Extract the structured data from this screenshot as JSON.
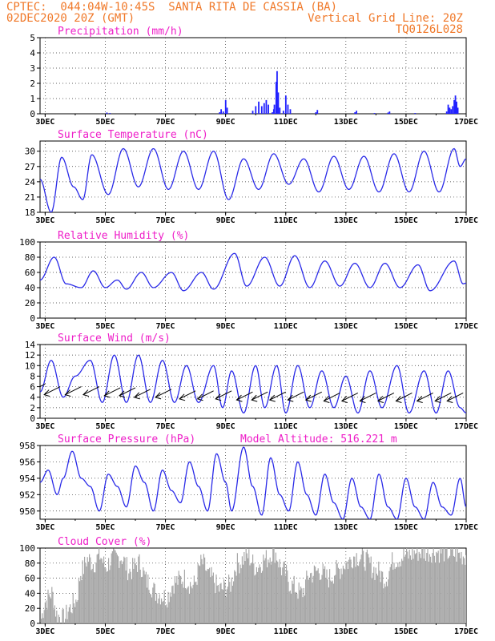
{
  "header": {
    "line1": "CPTEC:  044:04W-10:45S  SANTA RITA DE CASSIA (BA)",
    "line2_left": "02DEC2020 20Z (GMT)",
    "line2_right": "Vertical Grid Line: 20Z",
    "code": "TQ0126L028"
  },
  "colors": {
    "header": "#f07828",
    "title": "#ee1ec8",
    "series": "#2a2ae8",
    "bars": "#2020ff",
    "cloud": "#a8a8a8",
    "wind": "#000000",
    "grid": "#333333"
  },
  "x_axis": {
    "tick_labels": [
      "3DEC",
      "5DEC",
      "7DEC",
      "9DEC",
      "11DEC",
      "13DEC",
      "15DEC",
      "17DEC"
    ],
    "tick_days": [
      3,
      5,
      7,
      9,
      11,
      13,
      15,
      17
    ],
    "range_days": [
      2.83,
      17
    ]
  },
  "chart_data": [
    {
      "type": "bar",
      "title": "Precipitation (mm/h)",
      "ylim": [
        0,
        5
      ],
      "yticks": [
        0,
        1,
        2,
        3,
        4,
        5
      ],
      "grid": true,
      "points": [
        [
          5.05,
          0.08
        ],
        [
          5.15,
          0.05
        ],
        [
          8.8,
          0.1
        ],
        [
          8.85,
          0.3
        ],
        [
          8.92,
          0.15
        ],
        [
          9.0,
          0.9
        ],
        [
          9.05,
          0.4
        ],
        [
          9.9,
          0.2
        ],
        [
          10.0,
          0.5
        ],
        [
          10.1,
          0.8
        ],
        [
          10.2,
          0.5
        ],
        [
          10.28,
          0.7
        ],
        [
          10.35,
          0.9
        ],
        [
          10.42,
          0.6
        ],
        [
          10.55,
          0.1
        ],
        [
          10.6,
          0.3
        ],
        [
          10.62,
          0.6
        ],
        [
          10.68,
          2.1
        ],
        [
          10.71,
          2.8
        ],
        [
          10.75,
          1.4
        ],
        [
          10.8,
          0.4
        ],
        [
          10.92,
          0.2
        ],
        [
          11.0,
          1.2
        ],
        [
          11.07,
          0.6
        ],
        [
          11.15,
          0.3
        ],
        [
          12.0,
          0.1
        ],
        [
          12.05,
          0.25
        ],
        [
          13.3,
          0.1
        ],
        [
          13.35,
          0.2
        ],
        [
          13.95,
          0.05
        ],
        [
          14.4,
          0.08
        ],
        [
          14.45,
          0.15
        ],
        [
          15.3,
          0.05
        ],
        [
          16.35,
          0.15
        ],
        [
          16.4,
          0.6
        ],
        [
          16.45,
          0.4
        ],
        [
          16.5,
          0.3
        ],
        [
          16.55,
          0.5
        ],
        [
          16.6,
          0.9
        ],
        [
          16.64,
          1.2
        ],
        [
          16.68,
          0.8
        ],
        [
          16.72,
          0.4
        ]
      ]
    },
    {
      "type": "line",
      "title": "Surface Temperature (nC)",
      "ylim": [
        18,
        32
      ],
      "yticks": [
        18,
        21,
        24,
        27,
        30
      ],
      "grid": true,
      "series": [
        {
          "mean": 25,
          "amp": 4.8,
          "peak_phase": 0.9,
          "trough_phase": 0.38
        }
      ],
      "keypoints": [
        [
          2.83,
          24.5
        ],
        [
          3.2,
          18.0
        ],
        [
          3.55,
          28.8
        ],
        [
          3.95,
          23.0
        ],
        [
          4.25,
          20.5
        ],
        [
          4.55,
          29.3
        ],
        [
          5.1,
          21.5
        ],
        [
          5.6,
          30.5
        ],
        [
          6.1,
          23.0
        ],
        [
          6.6,
          30.5
        ],
        [
          7.1,
          22.5
        ],
        [
          7.6,
          30.0
        ],
        [
          8.1,
          22.5
        ],
        [
          8.6,
          30.0
        ],
        [
          9.1,
          20.5
        ],
        [
          9.6,
          28.5
        ],
        [
          10.1,
          22.5
        ],
        [
          10.6,
          29.5
        ],
        [
          11.1,
          23.5
        ],
        [
          11.6,
          28.5
        ],
        [
          12.1,
          22.0
        ],
        [
          12.6,
          29.0
        ],
        [
          13.1,
          22.5
        ],
        [
          13.6,
          29.0
        ],
        [
          14.1,
          22.0
        ],
        [
          14.6,
          29.5
        ],
        [
          15.1,
          22.0
        ],
        [
          15.6,
          30.0
        ],
        [
          16.1,
          22.0
        ],
        [
          16.6,
          30.5
        ],
        [
          16.8,
          27.0
        ],
        [
          17.0,
          28.5
        ]
      ]
    },
    {
      "type": "line",
      "title": "Relative Humidity (%)",
      "ylim": [
        0,
        100
      ],
      "yticks": [
        0,
        20,
        40,
        60,
        80,
        100
      ],
      "grid": true,
      "keypoints": [
        [
          2.83,
          50
        ],
        [
          3.3,
          80
        ],
        [
          3.7,
          45
        ],
        [
          4.2,
          40
        ],
        [
          4.6,
          62
        ],
        [
          5.0,
          40
        ],
        [
          5.4,
          50
        ],
        [
          5.7,
          38
        ],
        [
          6.2,
          60
        ],
        [
          6.6,
          40
        ],
        [
          7.2,
          60
        ],
        [
          7.6,
          36
        ],
        [
          8.2,
          60
        ],
        [
          8.6,
          38
        ],
        [
          9.3,
          85
        ],
        [
          9.7,
          42
        ],
        [
          10.3,
          80
        ],
        [
          10.8,
          42
        ],
        [
          11.3,
          82
        ],
        [
          11.8,
          40
        ],
        [
          12.3,
          75
        ],
        [
          12.8,
          42
        ],
        [
          13.3,
          72
        ],
        [
          13.8,
          40
        ],
        [
          14.3,
          72
        ],
        [
          14.8,
          40
        ],
        [
          15.4,
          70
        ],
        [
          15.8,
          36
        ],
        [
          16.6,
          75
        ],
        [
          16.9,
          45
        ],
        [
          17.0,
          46
        ]
      ]
    },
    {
      "type": "line",
      "title": "Surface Wind (m/s)",
      "ylim": [
        0,
        14
      ],
      "yticks": [
        0,
        2,
        4,
        6,
        8,
        10,
        12,
        14
      ],
      "grid": true,
      "keypoints": [
        [
          2.83,
          5
        ],
        [
          3.2,
          11
        ],
        [
          3.6,
          4
        ],
        [
          4.0,
          8
        ],
        [
          4.5,
          11
        ],
        [
          4.9,
          3
        ],
        [
          5.3,
          12
        ],
        [
          5.7,
          3
        ],
        [
          6.1,
          12
        ],
        [
          6.5,
          3
        ],
        [
          6.9,
          11
        ],
        [
          7.3,
          3
        ],
        [
          7.7,
          10
        ],
        [
          8.1,
          3
        ],
        [
          8.6,
          10
        ],
        [
          8.9,
          2
        ],
        [
          9.2,
          9
        ],
        [
          9.6,
          1
        ],
        [
          10.0,
          10
        ],
        [
          10.3,
          2
        ],
        [
          10.7,
          10
        ],
        [
          11.0,
          1
        ],
        [
          11.4,
          10
        ],
        [
          11.8,
          2
        ],
        [
          12.2,
          9
        ],
        [
          12.6,
          2
        ],
        [
          13.0,
          8
        ],
        [
          13.4,
          1
        ],
        [
          13.8,
          9
        ],
        [
          14.2,
          2
        ],
        [
          14.7,
          10
        ],
        [
          15.1,
          1
        ],
        [
          15.6,
          9
        ],
        [
          16.0,
          1
        ],
        [
          16.4,
          9
        ],
        [
          16.8,
          2
        ],
        [
          17.0,
          1
        ]
      ],
      "wind_vectors": [
        [
          3.0,
          6.5
        ],
        [
          3.5,
          6.0
        ],
        [
          4.2,
          6.0
        ],
        [
          4.8,
          6.0
        ],
        [
          5.5,
          5.8
        ],
        [
          6.0,
          5.8
        ],
        [
          6.5,
          5.5
        ],
        [
          7.2,
          5.5
        ],
        [
          8.0,
          5.2
        ],
        [
          8.6,
          5.2
        ],
        [
          9.2,
          5.2
        ],
        [
          9.9,
          5.0
        ],
        [
          10.4,
          5.0
        ],
        [
          11.0,
          5.0
        ],
        [
          11.6,
          5.0
        ],
        [
          12.2,
          5.0
        ],
        [
          12.8,
          4.8
        ],
        [
          13.4,
          4.8
        ],
        [
          14.0,
          4.8
        ],
        [
          14.6,
          4.8
        ],
        [
          15.2,
          4.8
        ],
        [
          15.9,
          4.8
        ],
        [
          16.5,
          4.8
        ],
        [
          16.9,
          4.8
        ]
      ]
    },
    {
      "type": "line",
      "title": "Surface Pressure (hPa)",
      "annotation": "Model Altitude: 516.221 m",
      "ylim": [
        949,
        958
      ],
      "yticks": [
        950,
        952,
        954,
        956,
        958
      ],
      "grid": true,
      "keypoints": [
        [
          2.83,
          953.5
        ],
        [
          3.1,
          955.0
        ],
        [
          3.4,
          952.0
        ],
        [
          3.6,
          954.0
        ],
        [
          3.9,
          957.3
        ],
        [
          4.2,
          954.0
        ],
        [
          4.5,
          953.0
        ],
        [
          4.8,
          950.0
        ],
        [
          5.1,
          954.5
        ],
        [
          5.4,
          953.0
        ],
        [
          5.7,
          950.5
        ],
        [
          6.0,
          955.5
        ],
        [
          6.3,
          953.5
        ],
        [
          6.6,
          950.0
        ],
        [
          6.9,
          955.0
        ],
        [
          7.2,
          952.5
        ],
        [
          7.5,
          951.0
        ],
        [
          7.8,
          956.0
        ],
        [
          8.1,
          953.0
        ],
        [
          8.4,
          950.0
        ],
        [
          8.7,
          957.0
        ],
        [
          9.0,
          953.5
        ],
        [
          9.2,
          950.0
        ],
        [
          9.6,
          957.8
        ],
        [
          9.9,
          953.0
        ],
        [
          10.2,
          949.5
        ],
        [
          10.5,
          956.5
        ],
        [
          10.8,
          952.0
        ],
        [
          11.1,
          950.0
        ],
        [
          11.4,
          956.0
        ],
        [
          11.7,
          952.0
        ],
        [
          12.0,
          949.5
        ],
        [
          12.3,
          954.5
        ],
        [
          12.6,
          951.0
        ],
        [
          12.9,
          949.0
        ],
        [
          13.2,
          954.0
        ],
        [
          13.5,
          950.5
        ],
        [
          13.8,
          949.0
        ],
        [
          14.1,
          954.5
        ],
        [
          14.4,
          950.5
        ],
        [
          14.7,
          949.0
        ],
        [
          15.0,
          954.0
        ],
        [
          15.3,
          950.5
        ],
        [
          15.6,
          949.0
        ],
        [
          15.9,
          953.5
        ],
        [
          16.2,
          950.5
        ],
        [
          16.5,
          949.5
        ],
        [
          16.8,
          954.0
        ],
        [
          17.0,
          950.5
        ]
      ]
    },
    {
      "type": "bar",
      "title": "Cloud Cover (%)",
      "ylim": [
        0,
        100
      ],
      "yticks": [
        0,
        20,
        40,
        60,
        80,
        100
      ],
      "grid": true,
      "keypoints": [
        [
          2.83,
          5
        ],
        [
          3.0,
          30
        ],
        [
          3.2,
          40
        ],
        [
          3.4,
          10
        ],
        [
          3.6,
          5
        ],
        [
          3.8,
          20
        ],
        [
          4.0,
          30
        ],
        [
          4.2,
          70
        ],
        [
          4.4,
          85
        ],
        [
          4.6,
          80
        ],
        [
          4.8,
          90
        ],
        [
          5.0,
          75
        ],
        [
          5.2,
          85
        ],
        [
          5.5,
          88
        ],
        [
          5.8,
          70
        ],
        [
          6.1,
          80
        ],
        [
          6.4,
          55
        ],
        [
          6.7,
          40
        ],
        [
          7.0,
          35
        ],
        [
          7.3,
          55
        ],
        [
          7.6,
          60
        ],
        [
          7.9,
          50
        ],
        [
          8.2,
          80
        ],
        [
          8.5,
          60
        ],
        [
          8.8,
          45
        ],
        [
          9.1,
          50
        ],
        [
          9.4,
          80
        ],
        [
          9.7,
          90
        ],
        [
          10.0,
          75
        ],
        [
          10.3,
          85
        ],
        [
          10.6,
          95
        ],
        [
          10.9,
          70
        ],
        [
          11.2,
          50
        ],
        [
          11.5,
          40
        ],
        [
          11.8,
          65
        ],
        [
          12.1,
          70
        ],
        [
          12.4,
          60
        ],
        [
          12.7,
          70
        ],
        [
          13.0,
          80
        ],
        [
          13.3,
          90
        ],
        [
          13.6,
          85
        ],
        [
          14.0,
          70
        ],
        [
          14.3,
          60
        ],
        [
          14.6,
          85
        ],
        [
          15.0,
          90
        ],
        [
          15.4,
          95
        ],
        [
          15.8,
          95
        ],
        [
          16.2,
          95
        ],
        [
          16.6,
          92
        ],
        [
          17.0,
          90
        ]
      ]
    }
  ]
}
